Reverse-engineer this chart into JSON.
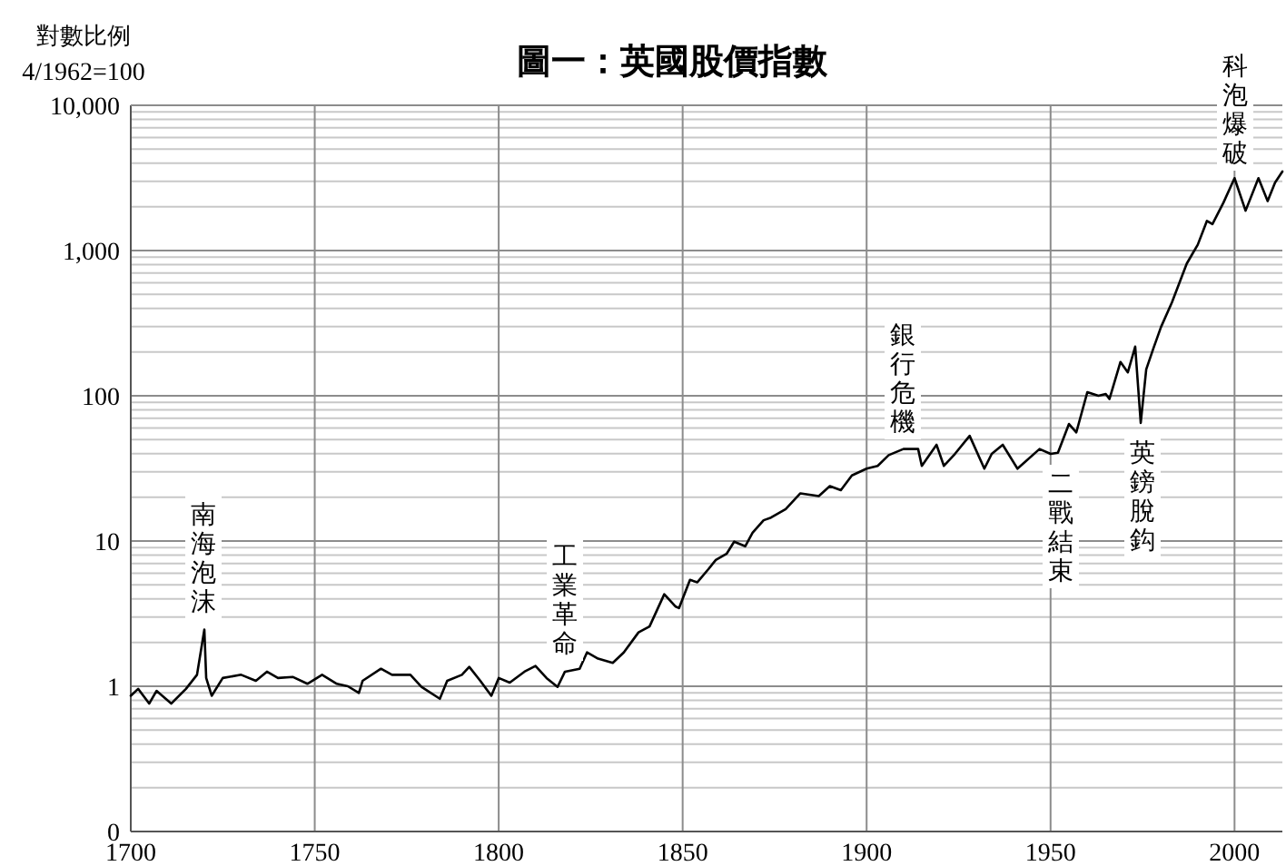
{
  "chart_data": {
    "type": "line",
    "title": "圖一：英國股價指數",
    "ylabel": "對數比例",
    "annotations": [
      "4/1962=100",
      "南海泡沫",
      "工業革命",
      "銀行危機",
      "二戰結束",
      "英鎊脫鈎",
      "科泡爆破"
    ],
    "log": "y",
    "grid": true,
    "color": "#000000",
    "marker": "none",
    "line_style": "solid",
    "xlim": [
      1700,
      2013
    ],
    "xticks": [
      1700,
      1750,
      1800,
      1850,
      1900,
      1950,
      2000
    ],
    "ylim": [
      0.1,
      10000
    ],
    "yticks": [
      {
        "value": 0.1,
        "label": "0"
      },
      1,
      10,
      100,
      {
        "value": 1000,
        "label": "1,000"
      },
      {
        "value": 10000,
        "label": "10,000"
      }
    ],
    "x": [
      1700,
      1702,
      1705,
      1707,
      1711,
      1715,
      1718,
      1720,
      1720.5,
      1722,
      1725,
      1730,
      1734,
      1737,
      1740,
      1744,
      1748,
      1752,
      1756,
      1759,
      1762,
      1763,
      1768,
      1771,
      1776,
      1779,
      1784,
      1786,
      1790,
      1792,
      1795,
      1798,
      1800,
      1803,
      1807,
      1810,
      1813,
      1816,
      1818,
      1822,
      1824,
      1827,
      1831,
      1834,
      1838,
      1841,
      1845,
      1848,
      1849,
      1852,
      1854,
      1857,
      1859,
      1862,
      1864,
      1867,
      1869,
      1872,
      1874,
      1878,
      1882,
      1887,
      1890,
      1893,
      1896,
      1900,
      1903,
      1906,
      1910,
      1914,
      1915,
      1919,
      1921,
      1924,
      1928,
      1932,
      1934,
      1937,
      1941,
      1947,
      1950,
      1952,
      1955,
      1957,
      1960,
      1963,
      1965,
      1966,
      1969,
      1971,
      1973,
      1974.5,
      1976,
      1978,
      1980,
      1983,
      1987,
      1988.5,
      1990,
      1992.5,
      1994,
      1997,
      2000,
      2003,
      2006.5,
      2009,
      2011,
      2013
    ],
    "values": [
      0.86,
      0.96,
      0.76,
      0.93,
      0.76,
      0.96,
      1.2,
      2.46,
      1.14,
      0.86,
      1.14,
      1.2,
      1.09,
      1.26,
      1.14,
      1.16,
      1.04,
      1.2,
      1.04,
      1.0,
      0.9,
      1.09,
      1.32,
      1.2,
      1.2,
      0.99,
      0.82,
      1.09,
      1.2,
      1.36,
      1.09,
      0.86,
      1.14,
      1.06,
      1.26,
      1.38,
      1.14,
      0.99,
      1.26,
      1.32,
      1.71,
      1.55,
      1.45,
      1.71,
      2.35,
      2.58,
      4.3,
      3.55,
      3.45,
      5.4,
      5.2,
      6.4,
      7.4,
      8.2,
      9.9,
      9.2,
      11.4,
      13.9,
      14.5,
      16.6,
      21.3,
      20.4,
      23.9,
      22.4,
      28.3,
      31.5,
      32.9,
      39,
      43,
      43,
      32.9,
      46,
      32.9,
      39.8,
      53,
      31.5,
      39.8,
      46,
      31.5,
      43,
      39.8,
      40.5,
      64,
      56,
      106,
      100,
      103,
      95,
      171,
      145,
      218,
      65,
      152,
      214,
      297,
      440,
      812,
      944,
      1096,
      1600,
      1520,
      2140,
      3150,
      1880,
      3150,
      2190,
      2930,
      3500
    ]
  }
}
